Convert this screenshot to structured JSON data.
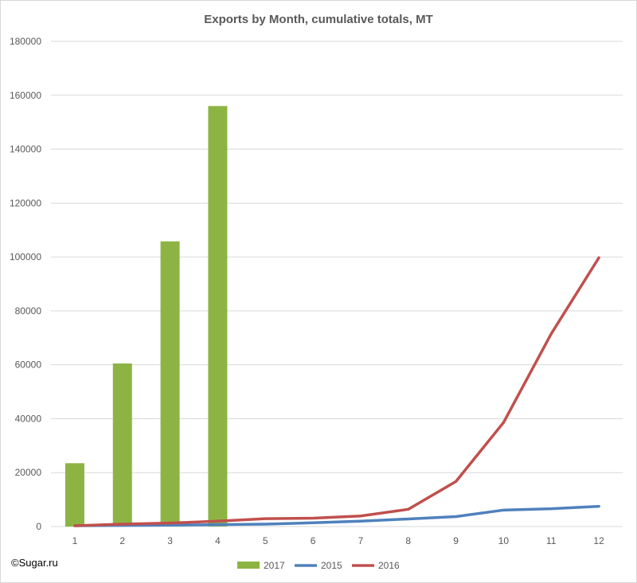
{
  "watermark": "©Sugar.ru",
  "chart_data": {
    "type": "bar",
    "title": "Exports by Month, cumulative totals, MT",
    "xlabel": "",
    "ylabel": "",
    "categories": [
      "1",
      "2",
      "3",
      "4",
      "5",
      "6",
      "7",
      "8",
      "9",
      "10",
      "11",
      "12"
    ],
    "ylim": [
      0,
      180000
    ],
    "yticks": [
      0,
      20000,
      40000,
      60000,
      80000,
      100000,
      120000,
      140000,
      160000,
      180000
    ],
    "grid": true,
    "legend_position": "bottom",
    "series": [
      {
        "name": "2017",
        "kind": "bar",
        "color": "#8db443",
        "values": [
          23500,
          60500,
          105800,
          156000,
          null,
          null,
          null,
          null,
          null,
          null,
          null,
          null
        ]
      },
      {
        "name": "2015",
        "kind": "line",
        "color": "#4f81bd",
        "values": [
          300,
          400,
          500,
          700,
          900,
          1400,
          2000,
          2800,
          3700,
          6100,
          6600,
          7500
        ]
      },
      {
        "name": "2016",
        "kind": "line",
        "color": "#c0504d",
        "values": [
          300,
          900,
          1300,
          2000,
          2900,
          3100,
          3900,
          6400,
          16700,
          38600,
          71500,
          99700
        ]
      }
    ]
  }
}
